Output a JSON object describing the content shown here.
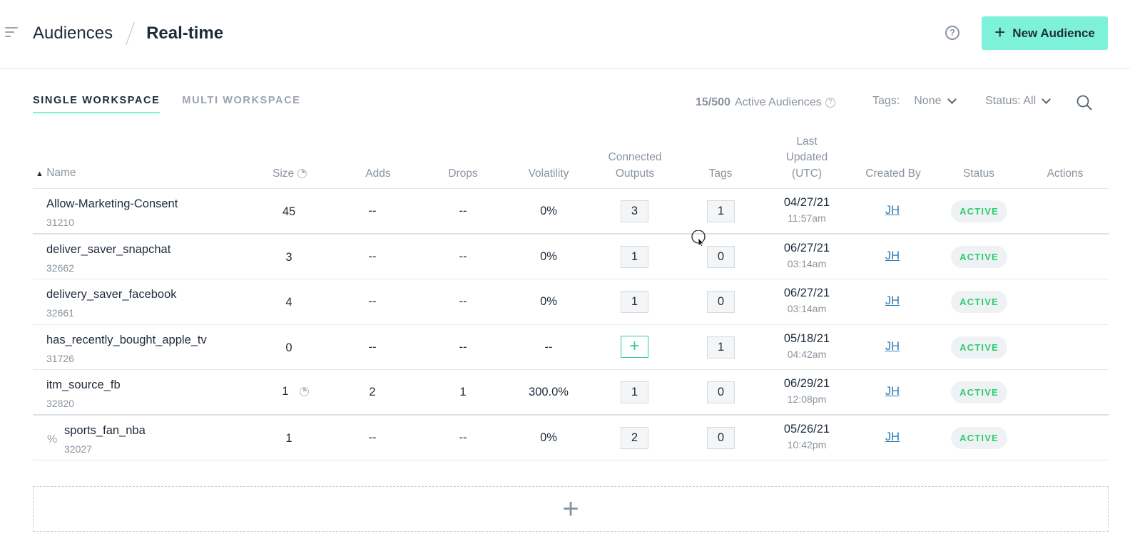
{
  "header": {
    "breadcrumb_root": "Audiences",
    "breadcrumb_current": "Real-time",
    "new_button_label": "New Audience"
  },
  "tabs": [
    {
      "label": "SINGLE WORKSPACE",
      "active": true
    },
    {
      "label": "MULTI WORKSPACE",
      "active": false
    }
  ],
  "toolbar": {
    "active_count": "15/500",
    "active_label": "Active Audiences",
    "tags_label": "Tags:",
    "tags_value": "None",
    "status_label": "Status: All"
  },
  "table": {
    "columns": {
      "name": "Name",
      "size": "Size",
      "adds": "Adds",
      "drops": "Drops",
      "volatility": "Volatility",
      "outputs_line1": "Connected",
      "outputs_line2": "Outputs",
      "tags": "Tags",
      "updated_line1": "Last",
      "updated_line2": "Updated",
      "updated_line3": "(UTC)",
      "created_by": "Created By",
      "status": "Status",
      "actions": "Actions"
    },
    "rows": [
      {
        "name": "Allow-Marketing-Consent",
        "id": "31210",
        "size": "45",
        "adds": "--",
        "drops": "--",
        "volatility": "0%",
        "outputs": "3",
        "tags": "1",
        "date": "04/27/21",
        "time": "11:57am",
        "created_by": "JH",
        "status": "ACTIVE"
      },
      {
        "name": "deliver_saver_snapchat",
        "id": "32662",
        "size": "3",
        "adds": "--",
        "drops": "--",
        "volatility": "0%",
        "outputs": "1",
        "tags": "0",
        "date": "06/27/21",
        "time": "03:14am",
        "created_by": "JH",
        "status": "ACTIVE"
      },
      {
        "name": "delivery_saver_facebook",
        "id": "32661",
        "size": "4",
        "adds": "--",
        "drops": "--",
        "volatility": "0%",
        "outputs": "1",
        "tags": "0",
        "date": "06/27/21",
        "time": "03:14am",
        "created_by": "JH",
        "status": "ACTIVE"
      },
      {
        "name": "has_recently_bought_apple_tv",
        "id": "31726",
        "size": "0",
        "adds": "--",
        "drops": "--",
        "volatility": "--",
        "outputs": "+",
        "tags": "1",
        "date": "05/18/21",
        "time": "04:42am",
        "created_by": "JH",
        "status": "ACTIVE"
      },
      {
        "name": "itm_source_fb",
        "id": "32820",
        "size": "1",
        "adds": "2",
        "drops": "1",
        "volatility": "300.0%",
        "outputs": "1",
        "tags": "0",
        "date": "06/29/21",
        "time": "12:08pm",
        "created_by": "JH",
        "status": "ACTIVE"
      },
      {
        "name": "sports_fan_nba",
        "id": "32027",
        "size": "1",
        "adds": "--",
        "drops": "--",
        "volatility": "0%",
        "outputs": "2",
        "tags": "0",
        "date": "05/26/21",
        "time": "10:42pm",
        "created_by": "JH",
        "status": "ACTIVE"
      }
    ]
  },
  "colors": {
    "accent": "#7ef2d8",
    "active_status": "#2ecc71",
    "link": "#2b7ab5",
    "text_dark": "#1f2b3a",
    "text_muted": "#8a949e"
  }
}
